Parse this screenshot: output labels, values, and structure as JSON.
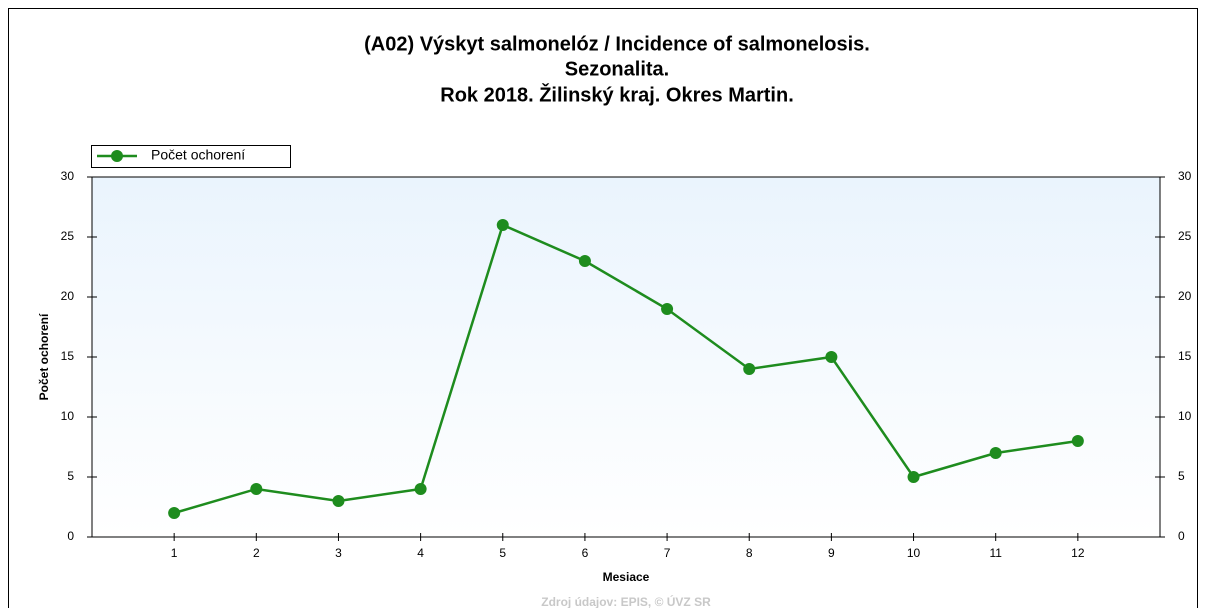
{
  "chart_data": {
    "type": "line",
    "title": [
      "(A02) Výskyt salmonelóz / Incidence of salmonelosis.",
      "Sezonalita.",
      "Rok 2018. Žilinský kraj. Okres Martin."
    ],
    "x_label": "Mesiace",
    "y_label": "Počet ochorení",
    "x": [
      1,
      2,
      3,
      4,
      5,
      6,
      7,
      8,
      9,
      10,
      11,
      12
    ],
    "series": [
      {
        "name": "Počet ochorení",
        "color": "#1e8c1e",
        "values": [
          2,
          4,
          3,
          4,
          26,
          23,
          19,
          14,
          15,
          5,
          7,
          8
        ]
      }
    ],
    "xlim": [
      0,
      13
    ],
    "xticks": [
      1,
      2,
      3,
      4,
      5,
      6,
      7,
      8,
      9,
      10,
      11,
      12
    ],
    "ylim": [
      0,
      30
    ],
    "yticks": [
      0,
      5,
      10,
      15,
      20,
      25,
      30
    ],
    "y2lim": [
      0,
      30
    ],
    "y2ticks": [
      0,
      5,
      10,
      15,
      20,
      25,
      30
    ],
    "legend": "top-left",
    "source": "Zdroj údajov: EPIS, © ÚVZ SR"
  }
}
